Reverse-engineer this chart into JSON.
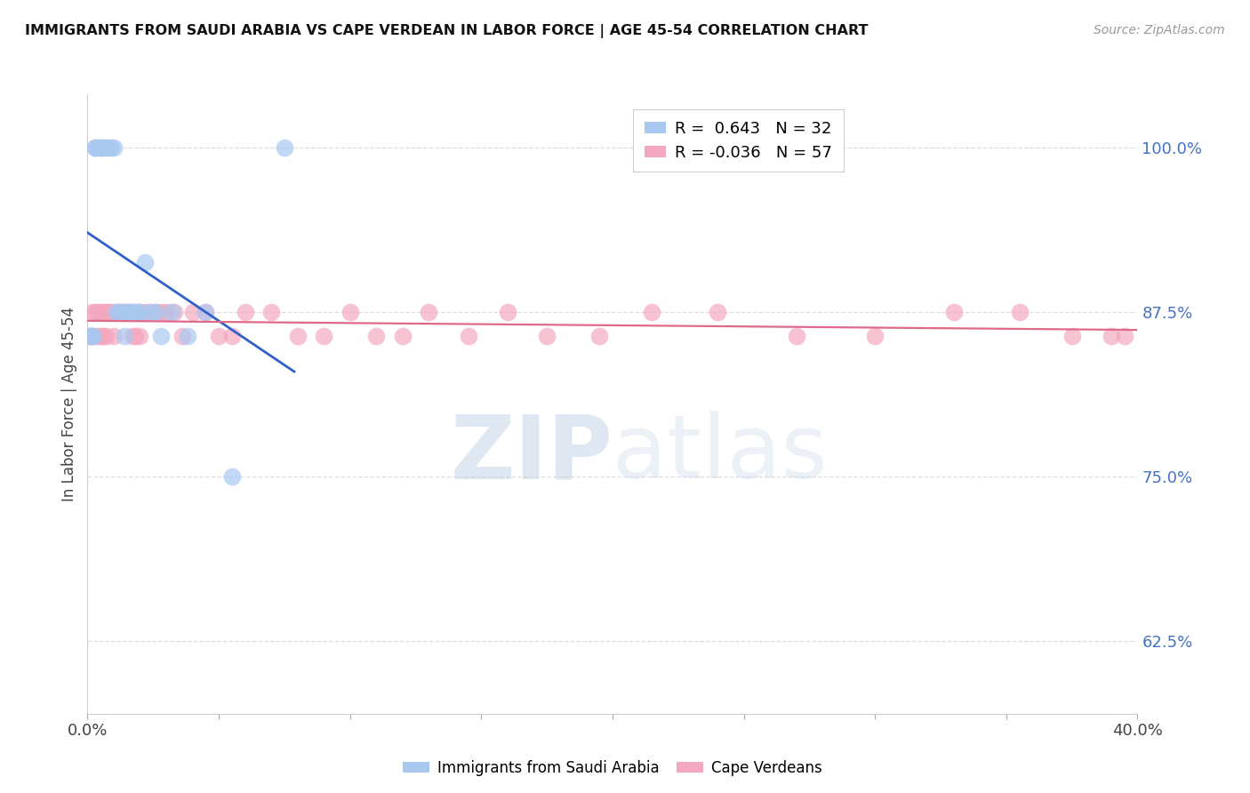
{
  "title": "IMMIGRANTS FROM SAUDI ARABIA VS CAPE VERDEAN IN LABOR FORCE | AGE 45-54 CORRELATION CHART",
  "source": "Source: ZipAtlas.com",
  "xlabel": "",
  "ylabel": "In Labor Force | Age 45-54",
  "xlim": [
    0.0,
    0.4
  ],
  "ylim": [
    0.57,
    1.04
  ],
  "x_ticks": [
    0.0,
    0.05,
    0.1,
    0.15,
    0.2,
    0.25,
    0.3,
    0.35,
    0.4
  ],
  "x_tick_labels": [
    "0.0%",
    "",
    "",
    "",
    "",
    "",
    "",
    "",
    "40.0%"
  ],
  "y_ticks": [
    0.625,
    0.75,
    0.875,
    1.0
  ],
  "y_tick_labels": [
    "62.5%",
    "75.0%",
    "87.5%",
    "100.0%"
  ],
  "y_tick_color": "#4472c4",
  "watermark_zip": "ZIP",
  "watermark_atlas": "atlas",
  "saudi_R": 0.643,
  "saudi_N": 32,
  "cape_R": -0.036,
  "cape_N": 57,
  "saudi_color": "#A8C8F0",
  "cape_color": "#F4A8C0",
  "saudi_line_color": "#3060C8",
  "cape_line_color": "#E06888",
  "legend_saudi_label": "Immigrants from Saudi Arabia",
  "legend_cape_label": "Cape Verdeans",
  "saudi_x": [
    0.001,
    0.002,
    0.002,
    0.003,
    0.003,
    0.004,
    0.005,
    0.005,
    0.006,
    0.007,
    0.008,
    0.009,
    0.01,
    0.011,
    0.012,
    0.013,
    0.014,
    0.015,
    0.016,
    0.017,
    0.018,
    0.019,
    0.02,
    0.022,
    0.024,
    0.026,
    0.028,
    0.032,
    0.038,
    0.045,
    0.055,
    0.075
  ],
  "saudi_y": [
    0.857,
    0.857,
    0.857,
    1.0,
    1.0,
    1.0,
    1.0,
    1.0,
    1.0,
    1.0,
    1.0,
    1.0,
    1.0,
    0.875,
    0.875,
    0.875,
    0.857,
    0.875,
    0.875,
    0.875,
    0.875,
    0.875,
    0.875,
    0.913,
    0.875,
    0.875,
    0.857,
    0.875,
    0.857,
    0.875,
    0.75,
    1.0
  ],
  "cape_x": [
    0.001,
    0.002,
    0.002,
    0.003,
    0.004,
    0.004,
    0.005,
    0.005,
    0.006,
    0.006,
    0.007,
    0.007,
    0.008,
    0.009,
    0.01,
    0.011,
    0.012,
    0.013,
    0.014,
    0.015,
    0.016,
    0.017,
    0.018,
    0.019,
    0.02,
    0.022,
    0.024,
    0.026,
    0.028,
    0.03,
    0.033,
    0.036,
    0.04,
    0.045,
    0.05,
    0.055,
    0.06,
    0.07,
    0.08,
    0.09,
    0.1,
    0.11,
    0.12,
    0.13,
    0.145,
    0.16,
    0.175,
    0.195,
    0.215,
    0.24,
    0.27,
    0.3,
    0.33,
    0.355,
    0.375,
    0.39,
    0.395
  ],
  "cape_y": [
    0.857,
    0.857,
    0.875,
    0.875,
    0.857,
    0.875,
    0.875,
    0.857,
    0.875,
    0.857,
    0.875,
    0.857,
    0.875,
    0.875,
    0.857,
    0.875,
    0.875,
    0.875,
    0.875,
    0.875,
    0.875,
    0.857,
    0.857,
    0.875,
    0.857,
    0.875,
    0.875,
    0.875,
    0.875,
    0.875,
    0.875,
    0.857,
    0.875,
    0.875,
    0.857,
    0.857,
    0.875,
    0.875,
    0.857,
    0.857,
    0.875,
    0.857,
    0.857,
    0.875,
    0.857,
    0.875,
    0.857,
    0.857,
    0.875,
    0.875,
    0.857,
    0.857,
    0.875,
    0.875,
    0.857,
    0.857,
    0.857
  ]
}
